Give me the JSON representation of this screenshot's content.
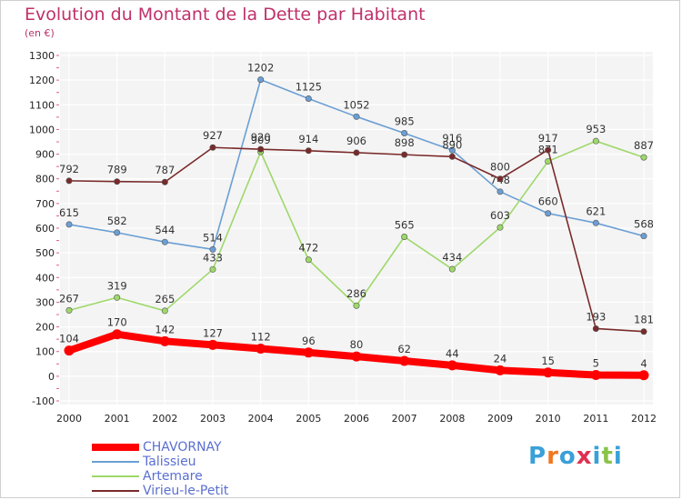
{
  "title": "Evolution du Montant de la Dette par Habitant",
  "subtitle": "(en €)",
  "logo": {
    "text": "Proxiti",
    "colors": [
      "#3aa0d8",
      "#f07820",
      "#3aa0d8",
      "#e03050",
      "#3aa0d8",
      "#8bc34a",
      "#3aa0d8"
    ]
  },
  "chart_data": {
    "type": "line",
    "title": "Evolution du Montant de la Dette par Habitant",
    "subtitle": "(en €)",
    "x": [
      "2000",
      "2001",
      "2002",
      "2003",
      "2004",
      "2005",
      "2006",
      "2007",
      "2008",
      "2009",
      "2010",
      "2011",
      "2012"
    ],
    "ylim": [
      -100,
      1300
    ],
    "yticks": [
      -100,
      0,
      100,
      200,
      300,
      400,
      500,
      600,
      700,
      800,
      900,
      1000,
      1100,
      1200,
      1300
    ],
    "grid": true,
    "legend_position": "bottom-left",
    "series": [
      {
        "name": "CHAVORNAY",
        "color": "#ff0000",
        "values": [
          104,
          170,
          142,
          127,
          112,
          96,
          80,
          62,
          44,
          24,
          15,
          5,
          4
        ]
      },
      {
        "name": "Talissieu",
        "color": "#6b9fd4",
        "values": [
          615,
          582,
          544,
          514,
          1202,
          1125,
          1052,
          985,
          916,
          748,
          660,
          621,
          568
        ]
      },
      {
        "name": "Artemare",
        "color": "#9ed86a",
        "values": [
          267,
          319,
          265,
          433,
          909,
          472,
          286,
          565,
          434,
          603,
          871,
          953,
          887
        ]
      },
      {
        "name": "Virieu-le-Petit",
        "color": "#7a2a2a",
        "values": [
          792,
          789,
          787,
          927,
          920,
          914,
          906,
          898,
          890,
          800,
          917,
          193,
          181
        ]
      }
    ]
  }
}
